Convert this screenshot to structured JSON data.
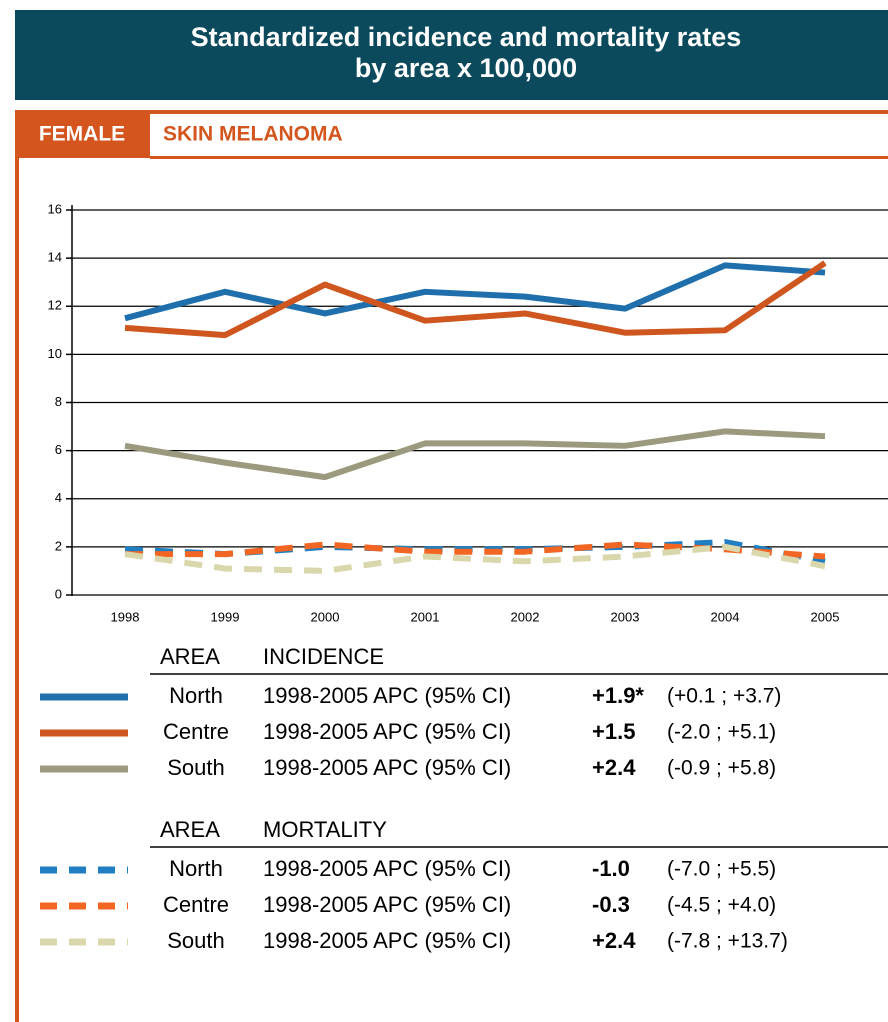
{
  "header": {
    "title": [
      "Standardized incidence and mortality rates",
      "by area x 100,000"
    ],
    "sex": "FEMALE",
    "site": "SKIN MELANOMA"
  },
  "chart_data": {
    "type": "line",
    "categories": [
      "1998",
      "1999",
      "2000",
      "2001",
      "2002",
      "2003",
      "2004",
      "2005"
    ],
    "ylim": [
      0,
      16
    ],
    "yticks": [
      0,
      2,
      4,
      6,
      8,
      10,
      12,
      14,
      16
    ],
    "grid": true,
    "legend_groups": [
      {
        "area": "AREA",
        "title": "INCIDENCE"
      },
      {
        "area": "AREA",
        "title": "MORTALITY"
      }
    ],
    "series": [
      {
        "name": "North",
        "color": "#1f6fad",
        "dashed": false,
        "values": [
          11.5,
          12.6,
          11.7,
          12.6,
          12.4,
          11.9,
          13.7,
          13.4
        ],
        "apc_label": "1998-2005 APC (95% CI)",
        "apc": "+1.9*",
        "ci": "(+0.1 ; +3.7)"
      },
      {
        "name": "Centre",
        "color": "#cf561f",
        "dashed": false,
        "values": [
          11.1,
          10.8,
          12.9,
          11.4,
          11.7,
          10.9,
          11.0,
          13.8
        ],
        "apc_label": "1998-2005 APC (95% CI)",
        "apc": "+1.5",
        "ci": "(-2.0 ; +5.1)"
      },
      {
        "name": "South",
        "color": "#9c9a7e",
        "dashed": false,
        "values": [
          6.2,
          5.5,
          4.9,
          6.3,
          6.3,
          6.2,
          6.8,
          6.6
        ],
        "apc_label": "1998-2005 APC (95% CI)",
        "apc": "+2.4",
        "ci": "(-0.9 ; +5.8)"
      },
      {
        "name": "North",
        "color": "#1f7fc2",
        "dashed": true,
        "values": [
          1.9,
          1.7,
          2.0,
          1.9,
          1.9,
          2.0,
          2.2,
          1.4
        ],
        "apc_label": "1998-2005 APC (95% CI)",
        "apc": "-1.0",
        "ci": "(-7.0 ; +5.5)"
      },
      {
        "name": "Centre",
        "color": "#f26522",
        "dashed": true,
        "values": [
          1.7,
          1.7,
          2.1,
          1.8,
          1.8,
          2.1,
          1.9,
          1.6
        ],
        "apc_label": "1998-2005 APC (95% CI)",
        "apc": "-0.3",
        "ci": "(-4.5 ; +4.0)"
      },
      {
        "name": "South",
        "color": "#d9d7ab",
        "dashed": true,
        "values": [
          1.7,
          1.1,
          1.0,
          1.6,
          1.4,
          1.6,
          2.0,
          1.2
        ],
        "apc_label": "1998-2005 APC (95% CI)",
        "apc": "+2.4",
        "ci": "(-7.8 ; +13.7)"
      }
    ]
  }
}
